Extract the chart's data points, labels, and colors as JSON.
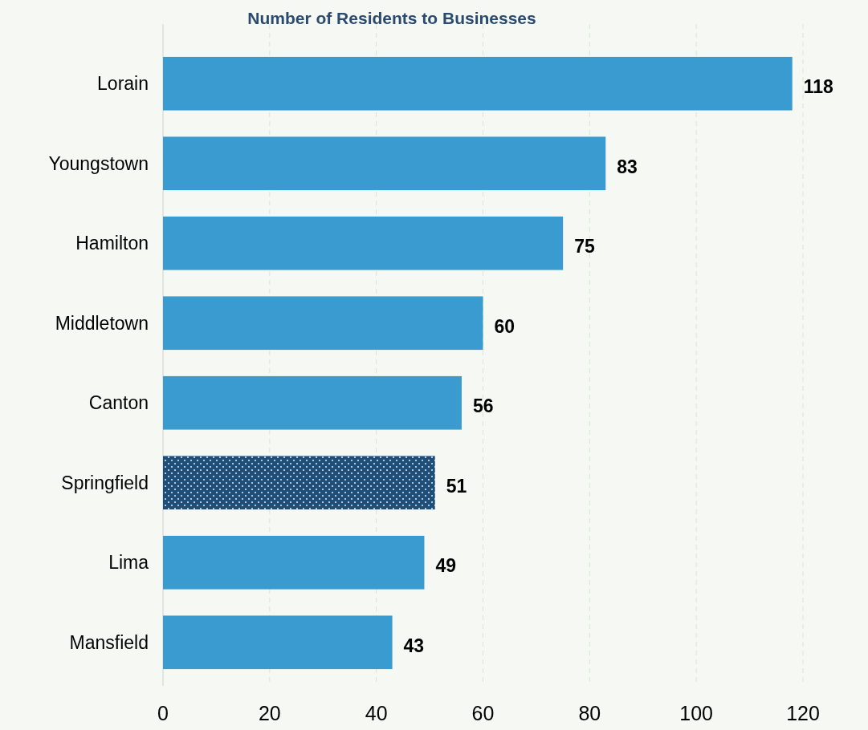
{
  "chart_data": {
    "type": "bar",
    "orientation": "horizontal",
    "title": "Number of Residents to Businesses",
    "categories": [
      "Lorain",
      "Youngstown",
      "Hamilton",
      "Middletown",
      "Canton",
      "Springfield",
      "Lima",
      "Mansfield"
    ],
    "values": [
      118,
      83,
      75,
      60,
      56,
      51,
      49,
      43
    ],
    "colors": [
      "#3a9bd0",
      "#3a9bd0",
      "#3a9bd0",
      "#3a9bd0",
      "#3a9bd0",
      "#1f4e79",
      "#3a9bd0",
      "#3a9bd0"
    ],
    "xlim": [
      0,
      120
    ],
    "xticks": [
      0,
      20,
      40,
      60,
      80,
      100,
      120
    ],
    "grid": "x",
    "data_labels": true
  }
}
